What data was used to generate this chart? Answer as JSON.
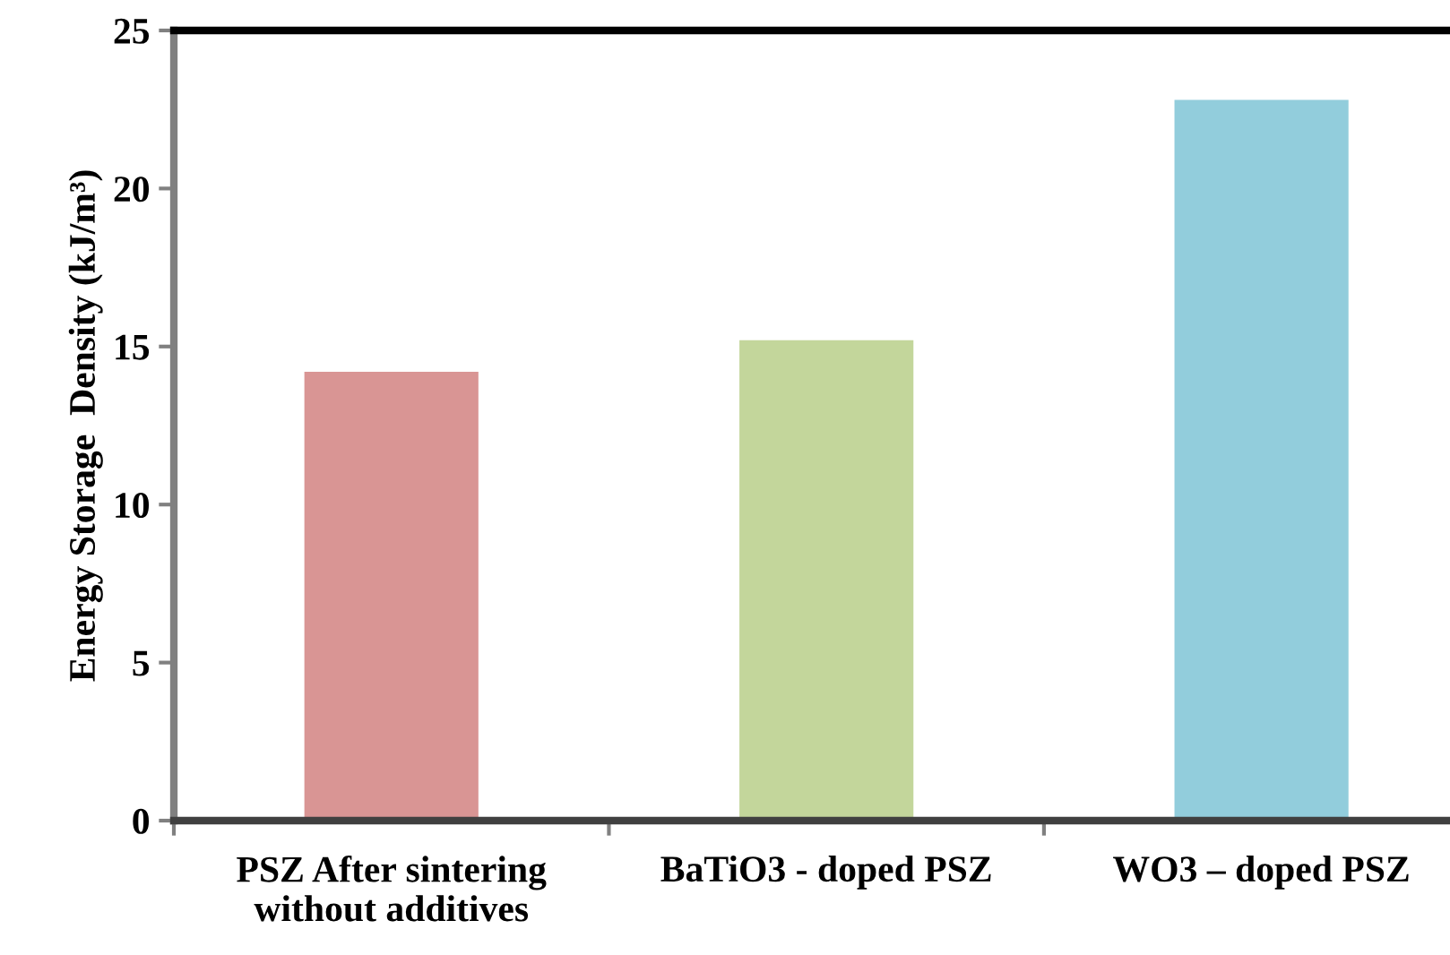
{
  "chart_data": {
    "type": "bar",
    "ylabel": "Energy Storage  Density (kJ/m³)",
    "categories": [
      "PSZ After sintering\nwithout additives",
      "BaTiO3 - doped PSZ",
      "WO3 – doped PSZ"
    ],
    "values": [
      14.2,
      15.2,
      22.8
    ],
    "colors": [
      "#d99594",
      "#c3d69b",
      "#92cddc"
    ],
    "ylim": [
      0,
      25
    ],
    "yticks": [
      0,
      5,
      10,
      15,
      20,
      25
    ],
    "grid": false,
    "legend": false
  }
}
